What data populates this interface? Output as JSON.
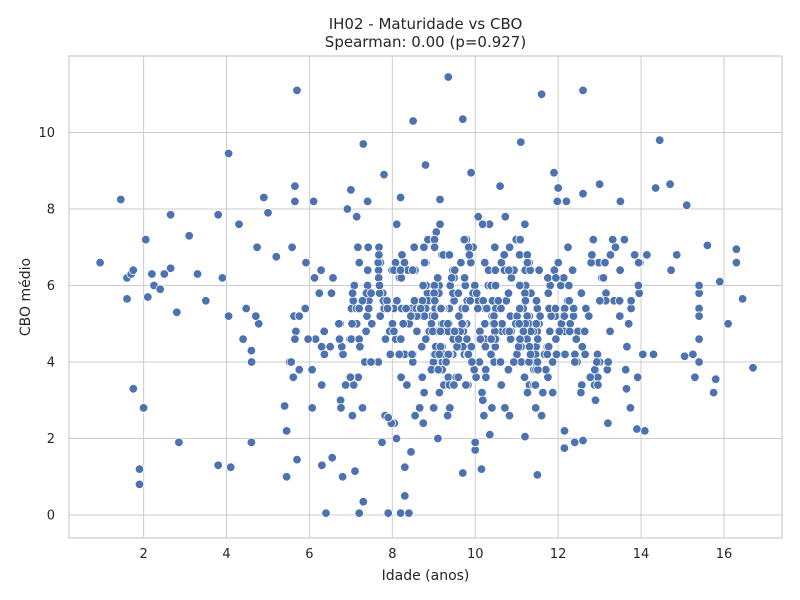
{
  "colors": {
    "point": "#4c72b0",
    "point_edge": "#ffffff",
    "grid": "#cccccc",
    "text": "#262626"
  },
  "chart_data": {
    "type": "scatter",
    "title": "IH02 - Maturidade vs CBO",
    "subtitle": "Spearman: 0.00 (p=0.927)",
    "xlabel": "Idade (anos)",
    "ylabel": "CBO médio",
    "xlim": [
      0.2,
      17.4
    ],
    "ylim": [
      -0.6,
      12.0
    ],
    "xticks": [
      2,
      4,
      6,
      8,
      10,
      12,
      14,
      16
    ],
    "yticks": [
      0,
      2,
      4,
      6,
      8,
      10
    ],
    "grid": true,
    "highlight_points": [
      {
        "x": 0.95,
        "y": 6.6
      },
      {
        "x": 1.45,
        "y": 8.25
      },
      {
        "x": 1.6,
        "y": 5.65
      },
      {
        "x": 1.6,
        "y": 6.2
      },
      {
        "x": 1.7,
        "y": 6.3
      },
      {
        "x": 1.75,
        "y": 6.4
      },
      {
        "x": 1.75,
        "y": 3.3
      },
      {
        "x": 1.9,
        "y": 1.2
      },
      {
        "x": 1.9,
        "y": 0.8
      },
      {
        "x": 2.0,
        "y": 2.8
      },
      {
        "x": 2.05,
        "y": 7.2
      },
      {
        "x": 2.1,
        "y": 5.7
      },
      {
        "x": 2.2,
        "y": 6.3
      },
      {
        "x": 2.25,
        "y": 6.0
      },
      {
        "x": 2.4,
        "y": 5.9
      },
      {
        "x": 2.5,
        "y": 6.3
      },
      {
        "x": 2.65,
        "y": 7.85
      },
      {
        "x": 2.65,
        "y": 6.45
      },
      {
        "x": 2.8,
        "y": 5.3
      },
      {
        "x": 2.85,
        "y": 1.9
      },
      {
        "x": 3.1,
        "y": 7.3
      },
      {
        "x": 3.3,
        "y": 6.3
      },
      {
        "x": 3.5,
        "y": 5.6
      },
      {
        "x": 3.8,
        "y": 7.85
      },
      {
        "x": 3.8,
        "y": 1.3
      },
      {
        "x": 3.9,
        "y": 6.2
      },
      {
        "x": 4.05,
        "y": 9.45
      },
      {
        "x": 4.1,
        "y": 1.25
      },
      {
        "x": 4.05,
        "y": 5.2
      },
      {
        "x": 4.3,
        "y": 7.6
      },
      {
        "x": 4.6,
        "y": 1.9
      },
      {
        "x": 4.6,
        "y": 4.3
      },
      {
        "x": 5.4,
        "y": 2.85
      },
      {
        "x": 5.45,
        "y": 2.2
      },
      {
        "x": 5.45,
        "y": 1.0
      },
      {
        "x": 5.7,
        "y": 11.1
      },
      {
        "x": 5.7,
        "y": 1.45
      },
      {
        "x": 5.65,
        "y": 8.6
      },
      {
        "x": 6.1,
        "y": 8.2
      },
      {
        "x": 6.3,
        "y": 1.3
      },
      {
        "x": 6.4,
        "y": 0.05
      },
      {
        "x": 6.55,
        "y": 1.5
      },
      {
        "x": 6.8,
        "y": 1.0
      },
      {
        "x": 7.1,
        "y": 1.15
      },
      {
        "x": 7.2,
        "y": 0.05
      },
      {
        "x": 7.3,
        "y": 0.35
      },
      {
        "x": 7.3,
        "y": 9.7
      },
      {
        "x": 7.75,
        "y": 1.9
      },
      {
        "x": 7.9,
        "y": 0.05
      },
      {
        "x": 8.2,
        "y": 0.05
      },
      {
        "x": 8.3,
        "y": 0.5
      },
      {
        "x": 8.4,
        "y": 0.05
      },
      {
        "x": 8.5,
        "y": 10.3
      },
      {
        "x": 8.8,
        "y": 9.15
      },
      {
        "x": 9.35,
        "y": 11.45
      },
      {
        "x": 9.7,
        "y": 10.35
      },
      {
        "x": 9.7,
        "y": 1.1
      },
      {
        "x": 10.0,
        "y": 1.7
      },
      {
        "x": 11.1,
        "y": 9.75
      },
      {
        "x": 11.6,
        "y": 11.0
      },
      {
        "x": 11.5,
        "y": 1.05
      },
      {
        "x": 11.9,
        "y": 8.95
      },
      {
        "x": 12.0,
        "y": 8.55
      },
      {
        "x": 12.15,
        "y": 1.75
      },
      {
        "x": 12.6,
        "y": 11.1
      },
      {
        "x": 12.6,
        "y": 1.95
      },
      {
        "x": 13.9,
        "y": 2.25
      },
      {
        "x": 14.45,
        "y": 9.8
      },
      {
        "x": 14.35,
        "y": 8.55
      },
      {
        "x": 14.7,
        "y": 8.65
      },
      {
        "x": 15.1,
        "y": 8.1
      },
      {
        "x": 15.3,
        "y": 3.6
      },
      {
        "x": 15.6,
        "y": 7.05
      },
      {
        "x": 15.8,
        "y": 3.55
      },
      {
        "x": 15.75,
        "y": 3.2
      },
      {
        "x": 15.9,
        "y": 6.1
      },
      {
        "x": 16.1,
        "y": 5.0
      },
      {
        "x": 16.3,
        "y": 6.95
      },
      {
        "x": 16.3,
        "y": 6.6
      },
      {
        "x": 16.45,
        "y": 5.65
      },
      {
        "x": 16.7,
        "y": 3.85
      },
      {
        "x": 15.05,
        "y": 4.15
      },
      {
        "x": 14.3,
        "y": 4.2
      },
      {
        "x": 13.65,
        "y": 3.3
      },
      {
        "x": 13.2,
        "y": 2.4
      },
      {
        "x": 12.9,
        "y": 3.0
      },
      {
        "x": 12.4,
        "y": 1.9
      },
      {
        "x": 11.6,
        "y": 2.6
      },
      {
        "x": 11.2,
        "y": 2.05
      },
      {
        "x": 10.35,
        "y": 2.1
      },
      {
        "x": 10.0,
        "y": 1.9
      },
      {
        "x": 9.1,
        "y": 2.0
      },
      {
        "x": 8.45,
        "y": 1.65
      },
      {
        "x": 8.3,
        "y": 1.25
      },
      {
        "x": 8.1,
        "y": 2.0
      },
      {
        "x": 7.9,
        "y": 2.55
      },
      {
        "x": 8.55,
        "y": 2.6
      },
      {
        "x": 5.0,
        "y": 7.9
      },
      {
        "x": 5.2,
        "y": 6.75
      },
      {
        "x": 4.9,
        "y": 8.3
      },
      {
        "x": 7.0,
        "y": 8.5
      },
      {
        "x": 7.8,
        "y": 8.9
      },
      {
        "x": 8.2,
        "y": 8.3
      },
      {
        "x": 9.15,
        "y": 8.25
      },
      {
        "x": 9.9,
        "y": 8.95
      },
      {
        "x": 10.6,
        "y": 8.6
      },
      {
        "x": 12.2,
        "y": 8.2
      },
      {
        "x": 12.6,
        "y": 8.4
      },
      {
        "x": 13.0,
        "y": 8.65
      }
    ],
    "cloud_series": {
      "n": 540,
      "x_mean": 10.1,
      "x_sd": 2.2,
      "y_mean": 5.2,
      "y_sd": 1.2,
      "x_range": [
        4.4,
        15.4
      ],
      "y_range": [
        1.2,
        8.2
      ]
    }
  }
}
